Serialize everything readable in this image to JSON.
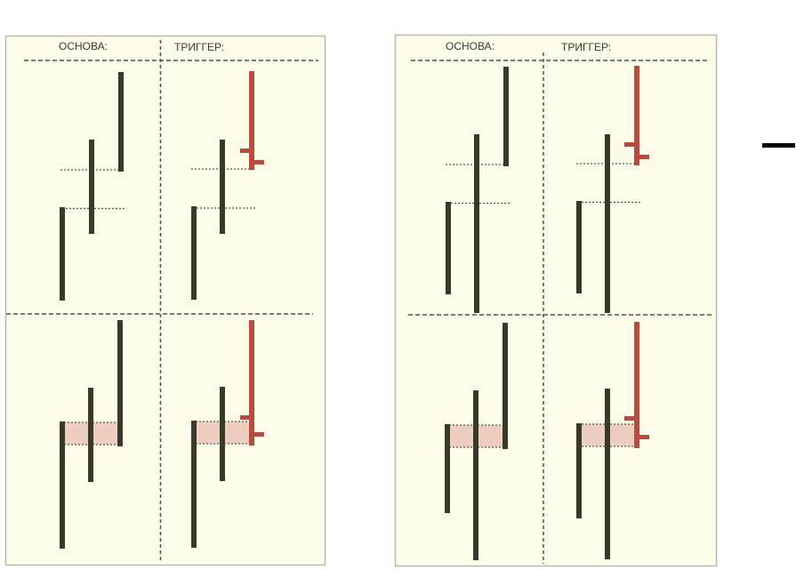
{
  "panels": [
    {
      "header": {
        "base_label": "ОСНОВА:",
        "trigger_label": "ТРИГГЕР:"
      }
    },
    {
      "header": {
        "base_label": "ОСНОВА:",
        "trigger_label": "ТРИГГЕР:"
      }
    }
  ],
  "colors": {
    "panel_bg": "#fdfde9",
    "panel_border": "#b8b8b0",
    "bar": "#3a3a2a",
    "trigger_bar": "#b94a3e",
    "zone_fill": "#eccfc0",
    "divider": "#555549"
  },
  "side_mark": {
    "icon": "dash-icon"
  }
}
